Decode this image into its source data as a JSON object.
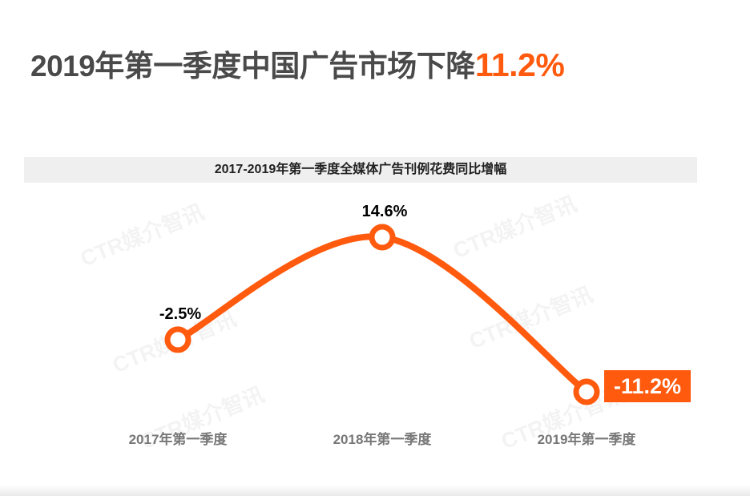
{
  "headline": {
    "text": "2019年第一季度中国广告市场下降",
    "accent": "11.2%"
  },
  "chart_data": {
    "type": "line",
    "title": "2017-2019年第一季度全媒体广告刊例花费同比增幅",
    "categories": [
      "2017年第一季度",
      "2018年第一季度",
      "2019年第一季度"
    ],
    "values": [
      -2.5,
      14.6,
      -11.2
    ],
    "data_labels": [
      "-2.5%",
      "14.6%",
      "-11.2%"
    ],
    "highlight_index": 2,
    "unit": "%",
    "grid": false,
    "legend": "none"
  },
  "watermark": {
    "text": "CTR媒介智讯"
  },
  "colors": {
    "accent": "#ff5a0e",
    "text_dark": "#4a4a4a",
    "axis_label": "#777777",
    "title_bar": "#efefef"
  }
}
